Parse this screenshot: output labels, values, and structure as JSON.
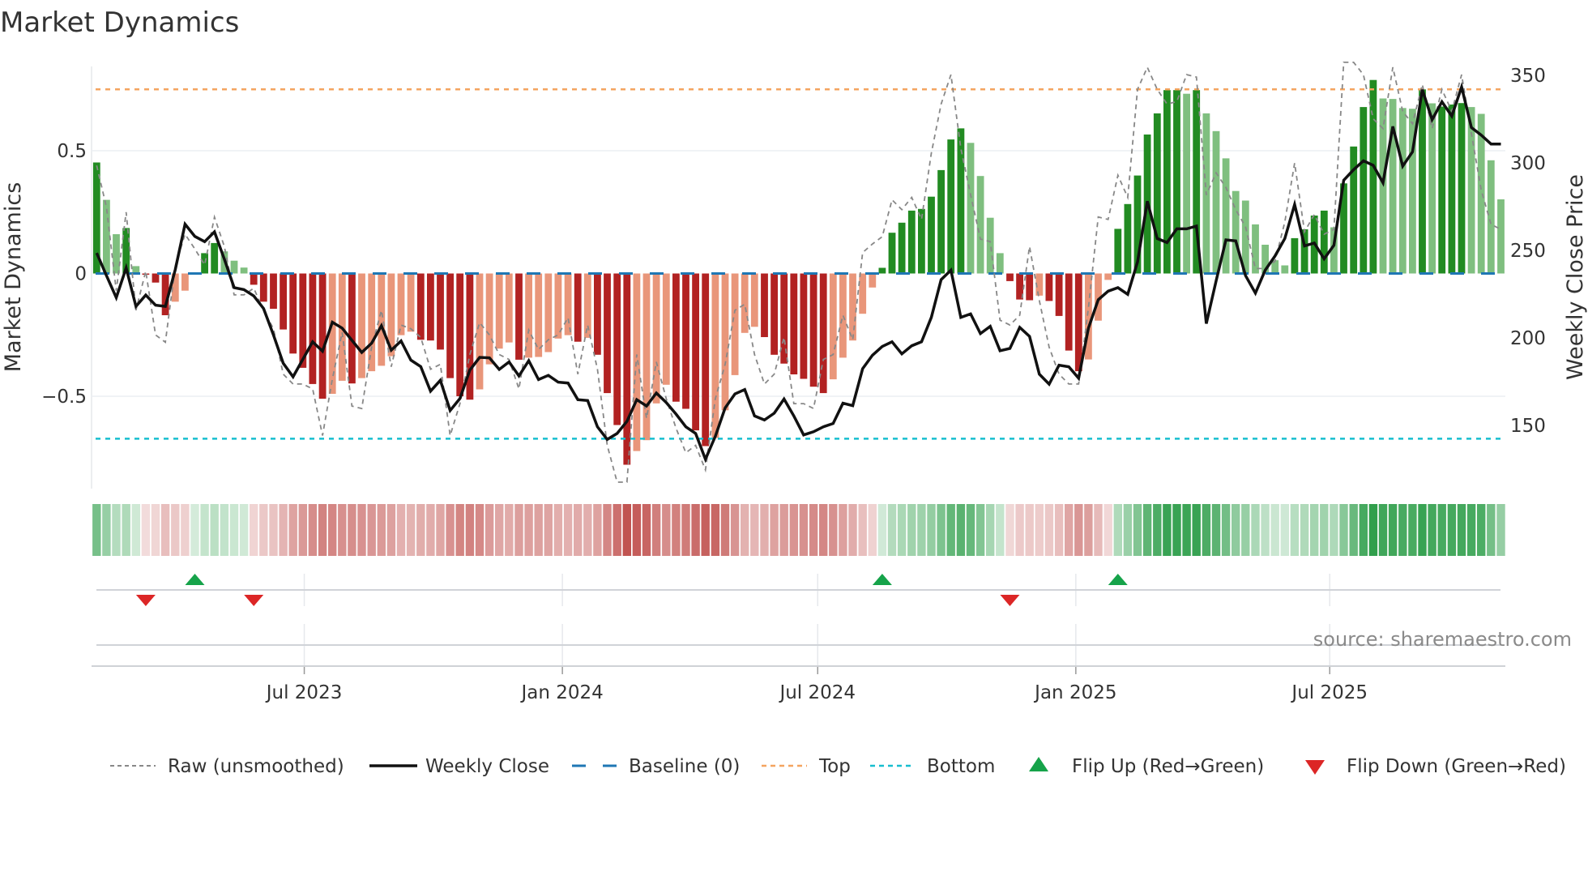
{
  "title": "Market Dynamics",
  "source": "source: sharemaestro.com",
  "colors": {
    "strong_up": "#228b22",
    "weak_up": "#7fbf7f",
    "strong_down": "#b22222",
    "weak_down": "#e9967a",
    "raw": "#888888",
    "close": "#111111",
    "baseline": "#1f77b4",
    "top": "#f4a460",
    "bottom": "#17becf",
    "flip_up": "#16a34a",
    "flip_down": "#dc2626",
    "strip_up": "#2e9e4a",
    "strip_down": "#c0504d"
  },
  "legend": [
    {
      "label": "Raw (unsmoothed)"
    },
    {
      "label": "Weekly Close"
    },
    {
      "label": "Baseline (0)"
    },
    {
      "label": "Top"
    },
    {
      "label": "Bottom"
    },
    {
      "label": "Flip Up (Red→Green)"
    },
    {
      "label": "Flip Down (Green→Red)"
    }
  ],
  "chart_data": {
    "type": "bar",
    "title": "Market Dynamics",
    "ylabel": "Market Dynamics",
    "y2label": "Weekly Close Price",
    "ylim": [
      -0.866,
      0.84
    ],
    "y2lim": [
      114,
      355
    ],
    "yticks": [
      {
        "value": 0.5,
        "label": "0.5"
      },
      {
        "value": 0,
        "label": "0"
      },
      {
        "value": -0.5,
        "label": "−0.5"
      }
    ],
    "y2ticks": [
      {
        "value": 150,
        "label": "150"
      },
      {
        "value": 200,
        "label": "200"
      },
      {
        "value": 250,
        "label": "250"
      },
      {
        "value": 300,
        "label": "300"
      },
      {
        "value": 350,
        "label": "350"
      }
    ],
    "x_ticks": [
      {
        "date": "2023-07-01",
        "label": "Jul 2023"
      },
      {
        "date": "2024-01-01",
        "label": "Jan 2024"
      },
      {
        "date": "2024-07-01",
        "label": "Jul 2024"
      },
      {
        "date": "2025-01-01",
        "label": "Jan 2025"
      },
      {
        "date": "2025-07-01",
        "label": "Jul 2025"
      }
    ],
    "x_start": "2023-02-03",
    "x_interval_days": 7,
    "top": 0.75,
    "bottom": -0.673,
    "baseline": 0,
    "dynamics": [
      0.452,
      0.3,
      0.16,
      0.185,
      0.03,
      -0.005,
      -0.037,
      -0.17,
      -0.115,
      -0.07,
      0.005,
      0.083,
      0.124,
      0.09,
      0.052,
      0.024,
      -0.046,
      -0.115,
      -0.144,
      -0.228,
      -0.326,
      -0.384,
      -0.45,
      -0.51,
      -0.49,
      -0.437,
      -0.448,
      -0.426,
      -0.398,
      -0.376,
      -0.337,
      -0.251,
      -0.237,
      -0.27,
      -0.273,
      -0.31,
      -0.426,
      -0.5,
      -0.514,
      -0.472,
      -0.37,
      -0.306,
      -0.281,
      -0.351,
      -0.343,
      -0.34,
      -0.32,
      -0.265,
      -0.251,
      -0.278,
      -0.262,
      -0.331,
      -0.487,
      -0.617,
      -0.779,
      -0.723,
      -0.679,
      -0.529,
      -0.453,
      -0.522,
      -0.551,
      -0.639,
      -0.703,
      -0.67,
      -0.557,
      -0.414,
      -0.242,
      -0.217,
      -0.259,
      -0.331,
      -0.367,
      -0.411,
      -0.429,
      -0.461,
      -0.487,
      -0.431,
      -0.343,
      -0.273,
      -0.164,
      -0.057,
      0.023,
      0.166,
      0.207,
      0.256,
      0.263,
      0.313,
      0.421,
      0.546,
      0.591,
      0.532,
      0.397,
      0.227,
      0.083,
      -0.031,
      -0.106,
      -0.109,
      -0.09,
      -0.112,
      -0.173,
      -0.314,
      -0.398,
      -0.35,
      -0.192,
      -0.026,
      0.182,
      0.283,
      0.399,
      0.566,
      0.652,
      0.747,
      0.747,
      0.732,
      0.747,
      0.652,
      0.58,
      0.469,
      0.336,
      0.297,
      0.2,
      0.117,
      0.054,
      0.033,
      0.144,
      0.18,
      0.236,
      0.256,
      0.188,
      0.367,
      0.517,
      0.678,
      0.788,
      0.713,
      0.711,
      0.674,
      0.671,
      0.75,
      0.693,
      0.68,
      0.688,
      0.694,
      0.678,
      0.65,
      0.461,
      0.302
    ],
    "strong": [
      1,
      0,
      0,
      1,
      0,
      1,
      1,
      1,
      0,
      0,
      1,
      1,
      1,
      0,
      0,
      0,
      1,
      1,
      1,
      1,
      1,
      1,
      1,
      1,
      0,
      0,
      1,
      0,
      0,
      0,
      0,
      0,
      0,
      1,
      1,
      1,
      1,
      1,
      1,
      0,
      0,
      0,
      0,
      1,
      0,
      0,
      0,
      0,
      0,
      1,
      0,
      1,
      1,
      1,
      1,
      0,
      0,
      0,
      0,
      1,
      1,
      1,
      1,
      0,
      0,
      0,
      0,
      0,
      1,
      1,
      1,
      1,
      1,
      1,
      1,
      0,
      0,
      0,
      0,
      0,
      1,
      1,
      1,
      1,
      1,
      1,
      1,
      1,
      1,
      0,
      0,
      0,
      0,
      1,
      1,
      1,
      0,
      1,
      1,
      1,
      1,
      0,
      0,
      0,
      1,
      1,
      1,
      1,
      1,
      1,
      1,
      0,
      1,
      0,
      0,
      0,
      0,
      0,
      0,
      0,
      0,
      0,
      1,
      1,
      1,
      1,
      0,
      1,
      1,
      1,
      1,
      0,
      0,
      0,
      0,
      1,
      0,
      1,
      1,
      1,
      0,
      0,
      0,
      0
    ],
    "raw": [
      0.44,
      0.27,
      -0.07,
      0.25,
      -0.15,
      0.01,
      -0.25,
      -0.28,
      0.03,
      0.16,
      0.1,
      0.035,
      0.23,
      0.11,
      -0.087,
      -0.087,
      -0.06,
      -0.15,
      -0.225,
      -0.41,
      -0.45,
      -0.45,
      -0.47,
      -0.66,
      -0.43,
      -0.24,
      -0.54,
      -0.55,
      -0.3,
      -0.15,
      -0.38,
      -0.21,
      -0.225,
      -0.26,
      -0.39,
      -0.37,
      -0.66,
      -0.53,
      -0.33,
      -0.2,
      -0.25,
      -0.33,
      -0.35,
      -0.47,
      -0.23,
      -0.31,
      -0.27,
      -0.25,
      -0.18,
      -0.41,
      -0.21,
      -0.39,
      -0.7,
      -0.85,
      -0.85,
      -0.33,
      -0.59,
      -0.36,
      -0.51,
      -0.63,
      -0.73,
      -0.7,
      -0.8,
      -0.51,
      -0.37,
      -0.15,
      -0.125,
      -0.33,
      -0.45,
      -0.41,
      -0.26,
      -0.53,
      -0.53,
      -0.55,
      -0.35,
      -0.33,
      -0.17,
      -0.27,
      0.085,
      0.12,
      0.15,
      0.3,
      0.26,
      0.31,
      0.22,
      0.49,
      0.69,
      0.81,
      0.51,
      0.32,
      0.14,
      0.13,
      -0.19,
      -0.21,
      -0.17,
      0.11,
      -0.11,
      -0.3,
      -0.41,
      -0.45,
      -0.45,
      -0.14,
      0.23,
      0.22,
      0.4,
      0.31,
      0.75,
      0.84,
      0.75,
      0.69,
      0.7,
      0.81,
      0.8,
      0.32,
      0.41,
      0.35,
      0.26,
      0.19,
      0.02,
      0.02,
      0.05,
      0.21,
      0.45,
      0.17,
      0.24,
      0.16,
      0.18,
      0.86,
      0.86,
      0.81,
      0.63,
      0.59,
      0.84,
      0.66,
      0.61,
      0.77,
      0.59,
      0.75,
      0.66,
      0.81,
      0.57,
      0.34,
      0.2,
      0.18
    ],
    "weekly_close": [
      248.5,
      235.6,
      223,
      240,
      218,
      224.5,
      218.7,
      218,
      239,
      265,
      258,
      255,
      260.6,
      245,
      228.7,
      227.6,
      224,
      216.8,
      201.7,
      185.5,
      177.8,
      187.8,
      197.8,
      192.4,
      209,
      205.6,
      198.6,
      191.7,
      197,
      207,
      193,
      198.3,
      187.3,
      183.6,
      169.6,
      175.8,
      158.5,
      165.4,
      181.6,
      188.9,
      188.6,
      182,
      186.3,
      178.3,
      187,
      176.2,
      178.6,
      174.7,
      174.2,
      164.7,
      164.2,
      149.2,
      142,
      145.4,
      152.3,
      164.7,
      161.1,
      168.5,
      163.1,
      156.5,
      149.2,
      145.4,
      130.7,
      143.8,
      160,
      168,
      170.5,
      155.4,
      153.1,
      157,
      165.1,
      155.4,
      144.6,
      146.4,
      149.2,
      151.1,
      162.7,
      161.3,
      182.4,
      190.1,
      195.1,
      197.8,
      190.9,
      195.5,
      197.8,
      211.7,
      233.3,
      238.7,
      211.7,
      213.7,
      202.5,
      206.6,
      192.7,
      194,
      206,
      200.9,
      179.3,
      173.6,
      184.4,
      183.5,
      177,
      205.6,
      221.8,
      226.7,
      228.7,
      224.9,
      243.4,
      278.1,
      256.8,
      254.5,
      262.3,
      262.3,
      263.9,
      208.2,
      232.6,
      256,
      255.4,
      235.6,
      225.6,
      238.7,
      246.8,
      256.8,
      276.2,
      252.6,
      254.2,
      245.2,
      252.9,
      290.1,
      296.1,
      301.2,
      298.6,
      288.6,
      320.8,
      298.1,
      306.3,
      341.8,
      324.7,
      334.9,
      326.7,
      343.4,
      320.2,
      315.9,
      310.8,
      310.8
    ],
    "flip_up": [
      "2023-04-14",
      "2024-08-16",
      "2025-01-31"
    ],
    "flip_down": [
      "2023-03-10",
      "2023-05-26",
      "2024-11-15"
    ]
  }
}
